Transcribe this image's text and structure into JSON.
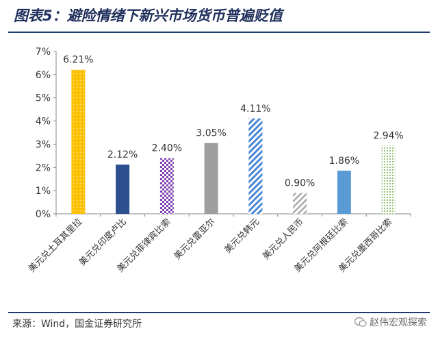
{
  "header": {
    "title": "图表5：避险情绪下新兴市场货币普遍贬值"
  },
  "footer": {
    "source": "来源：Wind，国金证券研究所",
    "watermark": "赵伟宏观探索"
  },
  "chart_data": {
    "type": "bar",
    "title": "图表5：避险情绪下新兴市场货币普遍贬值",
    "categories": [
      "美元兑土耳其里拉",
      "美元兑印度卢比",
      "美元兑菲律宾比索",
      "美元兑雷亚尔",
      "美元兑韩元",
      "美元兑人民币",
      "美元兑阿根廷比索",
      "美元兑墨西哥比索"
    ],
    "values": [
      6.21,
      2.12,
      2.4,
      3.05,
      4.11,
      0.9,
      1.86,
      2.94
    ],
    "data_labels": [
      "6.21%",
      "2.12%",
      "2.40%",
      "3.05%",
      "4.11%",
      "0.90%",
      "1.86%",
      "2.94%"
    ],
    "y_ticks": [
      "0%",
      "1%",
      "2%",
      "3%",
      "4%",
      "5%",
      "6%",
      "7%"
    ],
    "ylim": [
      0,
      7
    ],
    "xlabel": "",
    "ylabel": "",
    "grid": false,
    "bar_styles": [
      {
        "fill": "#fbbf00",
        "pattern": "dots"
      },
      {
        "fill": "#2c4f8f",
        "pattern": "solid"
      },
      {
        "fill": "#7b3fb0",
        "pattern": "checker"
      },
      {
        "fill": "#9e9e9e",
        "pattern": "solid"
      },
      {
        "fill": "#4a86d6",
        "pattern": "diagonal"
      },
      {
        "fill": "#9e9e9e",
        "pattern": "diagonal-light"
      },
      {
        "fill": "#5b9bd5",
        "pattern": "solid"
      },
      {
        "fill": "#70ad47",
        "pattern": "dots-light"
      }
    ]
  }
}
